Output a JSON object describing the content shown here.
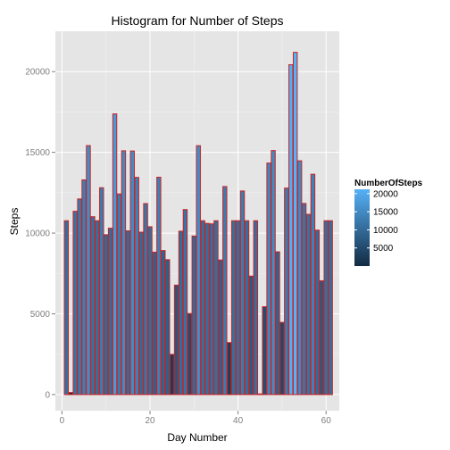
{
  "chart_data": {
    "type": "bar",
    "title": "Histogram for Number of Steps",
    "xlabel": "Day Number",
    "ylabel": "Steps",
    "xlim": [
      -1.5,
      63
    ],
    "ylim": [
      -1000,
      22500
    ],
    "x_ticks": [
      0,
      20,
      40,
      60
    ],
    "y_ticks": [
      0,
      5000,
      10000,
      15000,
      20000
    ],
    "x_tick_labels": [
      "0",
      "20",
      "40",
      "60"
    ],
    "y_tick_labels": [
      "0",
      "5000",
      "10000",
      "15000",
      "20000"
    ],
    "grid": true,
    "legend_position": "right",
    "bar_outline_color": "#cc2222",
    "panel_background": "#e5e5e5",
    "grid_color": "#ffffff",
    "color_scale": {
      "title": "NumberOfSteps",
      "low_color": "#132b43",
      "high_color": "#56b1f7",
      "range": [
        0,
        21194
      ],
      "breaks": [
        5000,
        10000,
        15000,
        20000
      ],
      "labels": [
        "5000",
        "10000",
        "15000",
        "20000"
      ]
    },
    "x": [
      1,
      2,
      3,
      4,
      5,
      6,
      7,
      8,
      9,
      10,
      11,
      12,
      13,
      14,
      15,
      16,
      17,
      18,
      19,
      20,
      21,
      22,
      23,
      24,
      25,
      26,
      27,
      28,
      29,
      30,
      31,
      32,
      33,
      34,
      35,
      36,
      37,
      38,
      39,
      40,
      41,
      42,
      43,
      44,
      45,
      46,
      47,
      48,
      49,
      50,
      51,
      52,
      53,
      54,
      55,
      56,
      57,
      58,
      59,
      60,
      61
    ],
    "values": [
      10766,
      126,
      11352,
      12116,
      13294,
      15420,
      11015,
      10766,
      12811,
      9900,
      10304,
      17382,
      12426,
      15098,
      10139,
      15084,
      13452,
      10056,
      11829,
      10395,
      8821,
      13460,
      8918,
      8355,
      2492,
      6778,
      10119,
      11458,
      5018,
      9819,
      15414,
      10766,
      10600,
      10571,
      10766,
      8334,
      12883,
      3219,
      10766,
      10766,
      12608,
      10765,
      7336,
      10766,
      41,
      5441,
      14339,
      15110,
      8841,
      4472,
      12787,
      20427,
      21194,
      14478,
      11834,
      11162,
      13646,
      10183,
      7047,
      10766,
      10766
    ]
  }
}
